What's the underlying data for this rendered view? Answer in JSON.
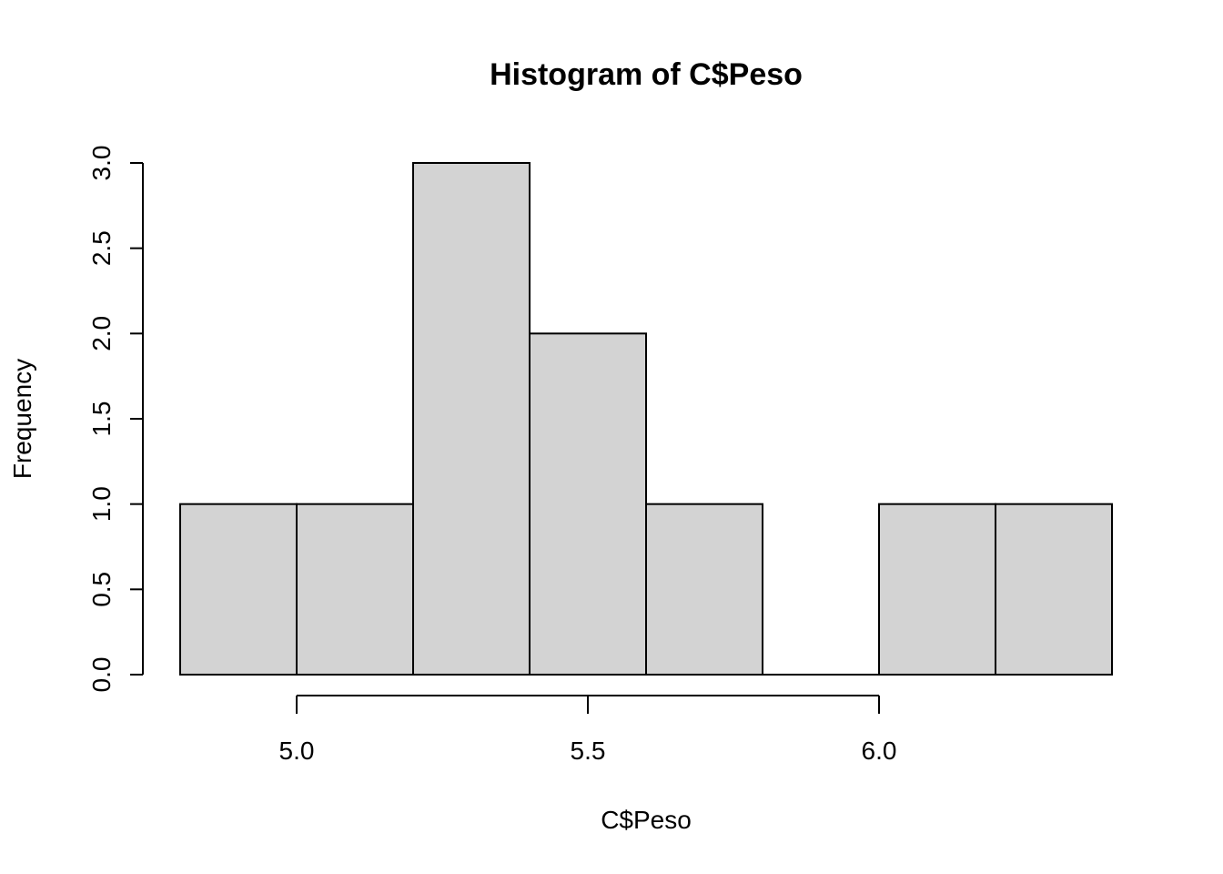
{
  "chart_data": {
    "type": "bar",
    "title": "Histogram of C$Peso",
    "xlabel": "C$Peso",
    "ylabel": "Frequency",
    "bins": [
      {
        "start": 4.8,
        "end": 5.0,
        "count": 1
      },
      {
        "start": 5.0,
        "end": 5.2,
        "count": 1
      },
      {
        "start": 5.2,
        "end": 5.4,
        "count": 3
      },
      {
        "start": 5.4,
        "end": 5.6,
        "count": 2
      },
      {
        "start": 5.6,
        "end": 5.8,
        "count": 1
      },
      {
        "start": 5.8,
        "end": 6.0,
        "count": 0
      },
      {
        "start": 6.0,
        "end": 6.2,
        "count": 1
      },
      {
        "start": 6.2,
        "end": 6.4,
        "count": 1
      }
    ],
    "x_ticks": [
      "5.0",
      "5.5",
      "6.0"
    ],
    "y_ticks": [
      "0.0",
      "0.5",
      "1.0",
      "1.5",
      "2.0",
      "2.5",
      "3.0"
    ],
    "xlim": [
      4.8,
      6.4
    ],
    "ylim": [
      0,
      3
    ],
    "grid": false,
    "legend": "none",
    "bar_color": "#d3d3d3",
    "border_color": "#000000"
  }
}
